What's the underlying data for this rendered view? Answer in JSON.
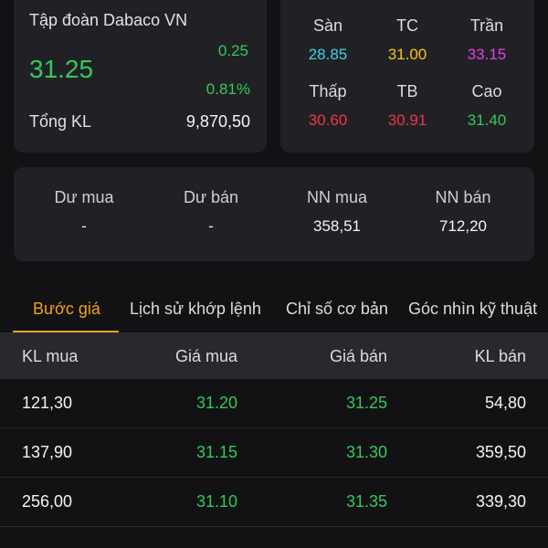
{
  "stock": {
    "company": "Tập đoàn Dabaco VN",
    "price": "31.25",
    "change": "0.25",
    "change_pct": "0.81%",
    "volume_label": "Tổng KL",
    "volume_value": "9,870,50"
  },
  "prices": {
    "floor": {
      "label": "Sàn",
      "value": "28.85",
      "color": "#3ad4e4"
    },
    "ref": {
      "label": "TC",
      "value": "31.00",
      "color": "#f5c518"
    },
    "ceiling": {
      "label": "Trần",
      "value": "33.15",
      "color": "#e040e8"
    },
    "low": {
      "label": "Thấp",
      "value": "30.60",
      "color": "#f0344a"
    },
    "avg": {
      "label": "TB",
      "value": "30.91",
      "color": "#f0344a"
    },
    "high": {
      "label": "Cao",
      "value": "31.40",
      "color": "#33c95c"
    }
  },
  "flow": {
    "bid_surplus": {
      "label": "Dư mua",
      "value": "-"
    },
    "ask_surplus": {
      "label": "Dư bán",
      "value": "-"
    },
    "foreign_buy": {
      "label": "NN mua",
      "value": "358,51"
    },
    "foreign_sell": {
      "label": "NN bán",
      "value": "712,20"
    }
  },
  "tabs": [
    {
      "label": "Bước giá",
      "active": true
    },
    {
      "label": "Lịch sử khớp lệnh",
      "active": false
    },
    {
      "label": "Chỉ số cơ bản",
      "active": false
    },
    {
      "label": "Góc nhìn kỹ thuật",
      "active": false
    }
  ],
  "table": {
    "headers": [
      "KL mua",
      "Giá mua",
      "Giá bán",
      "KL bán"
    ],
    "rows": [
      [
        "121,30",
        "31.20",
        "31.25",
        "54,80"
      ],
      [
        "137,90",
        "31.15",
        "31.30",
        "359,50"
      ],
      [
        "256,00",
        "31.10",
        "31.35",
        "339,30"
      ]
    ]
  },
  "colors": {
    "up": "#33c95c",
    "accent": "#f2a01e",
    "background": "#121214",
    "card": "#212125"
  }
}
